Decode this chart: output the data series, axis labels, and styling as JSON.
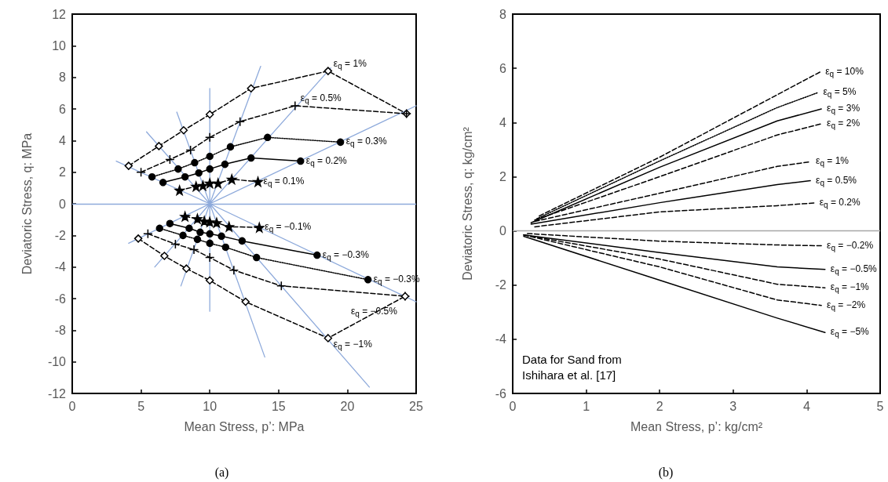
{
  "chart_data": [
    {
      "type": "line",
      "title": "(a)",
      "xlabel": "Mean Stress, p’: MPa",
      "ylabel": "Deviatoric Stress, q: MPa",
      "xlim": [
        0,
        25
      ],
      "xticks": [
        0,
        5,
        10,
        15,
        20,
        25
      ],
      "ylim": [
        -12,
        12
      ],
      "yticks": [
        -12,
        -10,
        -8,
        -6,
        -4,
        -2,
        0,
        2,
        4,
        6,
        8,
        10,
        12
      ],
      "grid": false,
      "ref_lines": [
        {
          "axis": "y",
          "value": 0,
          "color": "#8eaadb"
        }
      ],
      "series": [
        {
          "color": "#8eaadb",
          "marker": "none",
          "line_style": "solid",
          "x": [
            3.2,
            10,
            5.4,
            10,
            7.6,
            10,
            10,
            10,
            13.7,
            10,
            18.8,
            10,
            25,
            10,
            4.1,
            10,
            6.0,
            10,
            7.9,
            10,
            10,
            10,
            14,
            10,
            21.6,
            10,
            25
          ],
          "values": [
            2.7,
            0,
            4.55,
            0,
            5.8,
            0,
            7.3,
            0,
            8.7,
            0,
            8.6,
            0,
            6.2,
            0,
            -2.5,
            0,
            -4.0,
            0,
            -5.2,
            0,
            -6.8,
            0,
            -9.7,
            0,
            -11.6,
            0,
            -6.2
          ]
        },
        {
          "color": "#000000",
          "marker": "diamond",
          "line_style": "dashed",
          "x": [
            4.1,
            6.3,
            8.1,
            10.0,
            13.0,
            18.6,
            24.3
          ],
          "values": [
            2.4,
            3.65,
            4.65,
            5.65,
            7.3,
            8.4,
            5.7
          ]
        },
        {
          "color": "#000000",
          "marker": "cross",
          "line_style": "dashed",
          "x": [
            5.0,
            7.1,
            8.6,
            10.0,
            12.2,
            16.2,
            24.3
          ],
          "values": [
            2.0,
            2.8,
            3.4,
            4.2,
            5.2,
            6.2,
            5.7
          ]
        },
        {
          "color": "#000000",
          "marker": "circle",
          "line_style": "dotted",
          "x": [
            5.8,
            7.7,
            8.9,
            10.0,
            11.5,
            14.2,
            19.5
          ],
          "values": [
            1.7,
            2.2,
            2.6,
            3.0,
            3.6,
            4.2,
            3.9
          ]
        },
        {
          "color": "#000000",
          "marker": "circle",
          "line_style": "solid",
          "x": [
            6.6,
            8.2,
            9.2,
            10.0,
            11.1,
            13.0,
            16.6
          ],
          "values": [
            1.35,
            1.7,
            1.95,
            2.2,
            2.5,
            2.9,
            2.7
          ]
        },
        {
          "color": "#000000",
          "marker": "star",
          "line_style": "dashed",
          "x": [
            7.8,
            9.0,
            9.5,
            10.0,
            10.6,
            11.6,
            13.5
          ],
          "values": [
            0.85,
            1.1,
            1.15,
            1.3,
            1.3,
            1.55,
            1.4
          ]
        },
        {
          "color": "#000000",
          "marker": "star",
          "line_style": "dashed",
          "x": [
            8.2,
            9.1,
            9.6,
            10.0,
            10.5,
            11.4,
            13.6
          ],
          "values": [
            -0.8,
            -0.95,
            -1.1,
            -1.15,
            -1.2,
            -1.45,
            -1.5
          ]
        },
        {
          "color": "#000000",
          "marker": "circle",
          "line_style": "solid",
          "x": [
            7.1,
            8.5,
            9.3,
            10.0,
            10.85,
            12.35,
            17.8
          ],
          "values": [
            -1.25,
            -1.55,
            -1.8,
            -1.9,
            -2.05,
            -2.35,
            -3.25
          ]
        },
        {
          "color": "#000000",
          "marker": "circle",
          "line_style": "dotted",
          "x": [
            6.35,
            8.05,
            9.1,
            10.0,
            11.15,
            13.4,
            21.5
          ],
          "values": [
            -1.55,
            -2.0,
            -2.25,
            -2.5,
            -2.75,
            -3.4,
            -4.8
          ]
        },
        {
          "color": "#000000",
          "marker": "cross",
          "line_style": "dashed",
          "x": [
            5.5,
            7.5,
            8.85,
            10.0,
            11.75,
            15.2,
            24.2
          ],
          "values": [
            -1.9,
            -2.55,
            -2.9,
            -3.4,
            -4.2,
            -5.2,
            -5.85
          ]
        },
        {
          "color": "#000000",
          "marker": "diamond",
          "line_style": "dashed",
          "x": [
            4.8,
            6.7,
            8.3,
            10.0,
            12.6,
            18.6,
            24.2
          ],
          "values": [
            -2.2,
            -3.3,
            -4.1,
            -4.85,
            -6.2,
            -8.5,
            -5.85
          ]
        }
      ],
      "annotations": [
        {
          "text": "ε$_{q}$ = 1%",
          "x": 18.6,
          "y": 8.4
        },
        {
          "text": "ε$_{q}$ = 0.5%",
          "x": 16.2,
          "y": 6.2
        },
        {
          "text": "ε$_{q}$ = 0.3%",
          "x": 19.5,
          "y": 3.9
        },
        {
          "text": "ε$_{q}$ = 0.2%",
          "x": 16.6,
          "y": 2.7
        },
        {
          "text": "ε$_{q}$ = 0.1%",
          "x": 13.5,
          "y": 1.4
        },
        {
          "text": "ε$_{q}$ = −0.1%",
          "x": 13.6,
          "y": -1.5
        },
        {
          "text": "ε$_{q}$ = −0.3%",
          "x": 17.8,
          "y": -3.25
        },
        {
          "text": "ε$_{q}$ = −0.3%",
          "x": 21.5,
          "y": -4.8
        },
        {
          "text": "ε$_{q}$ = −0.5%",
          "x": 24.2,
          "y": -5.85
        },
        {
          "text": "ε$_{q}$ = −1%",
          "x": 18.6,
          "y": -8.5
        }
      ]
    },
    {
      "type": "line",
      "title": "(b)",
      "xlabel": "Mean Stress, p’: kg/cm²",
      "ylabel": "Deviatoric Stress, q: kg/cm²",
      "xlim": [
        0,
        5
      ],
      "xticks": [
        0,
        1,
        2,
        3,
        4,
        5
      ],
      "ylim": [
        -6,
        8
      ],
      "yticks": [
        -6,
        -4,
        -2,
        0,
        2,
        4,
        6,
        8
      ],
      "grid": false,
      "ref_lines": [
        {
          "axis": "y",
          "value": 0,
          "color": "#a6a6a6"
        }
      ],
      "series": [
        {
          "color": "#000000",
          "marker": "none",
          "line_style": "dashed",
          "x": [
            0.36,
            2.0,
            4.18
          ],
          "values": [
            0.55,
            2.72,
            5.86
          ]
        },
        {
          "color": "#000000",
          "marker": "none",
          "line_style": "dotted",
          "x": [
            0.33,
            2.0,
            3.6,
            4.15
          ],
          "values": [
            0.45,
            2.58,
            4.55,
            5.1
          ]
        },
        {
          "color": "#000000",
          "marker": "none",
          "line_style": "solid",
          "x": [
            0.25,
            2.0,
            3.6,
            4.2
          ],
          "values": [
            0.3,
            2.35,
            4.06,
            4.5
          ]
        },
        {
          "color": "#000000",
          "marker": "none",
          "line_style": "dashed",
          "x": [
            0.3,
            2.0,
            3.6,
            4.2
          ],
          "values": [
            0.4,
            2.0,
            3.54,
            3.95
          ]
        },
        {
          "color": "#000000",
          "marker": "none",
          "line_style": "dashed",
          "x": [
            0.3,
            2.0,
            3.6,
            4.05
          ],
          "values": [
            0.35,
            1.39,
            2.38,
            2.55
          ]
        },
        {
          "color": "#000000",
          "marker": "none",
          "line_style": "solid",
          "x": [
            0.25,
            2.0,
            3.6,
            4.05
          ],
          "values": [
            0.25,
            1.04,
            1.71,
            1.85
          ]
        },
        {
          "color": "#000000",
          "marker": "none",
          "line_style": "dashed",
          "x": [
            0.3,
            2.0,
            3.6,
            4.1
          ],
          "values": [
            0.15,
            0.7,
            0.93,
            1.03
          ]
        },
        {
          "color": "#000000",
          "marker": "none",
          "line_style": "dashed",
          "x": [
            0.2,
            2.0,
            3.6,
            4.2
          ],
          "values": [
            -0.1,
            -0.38,
            -0.52,
            -0.55
          ]
        },
        {
          "color": "#000000",
          "marker": "none",
          "line_style": "solid",
          "x": [
            0.15,
            2.0,
            3.6,
            4.25
          ],
          "values": [
            -0.15,
            -0.8,
            -1.33,
            -1.42
          ]
        },
        {
          "color": "#000000",
          "marker": "none",
          "line_style": "dashed",
          "x": [
            0.15,
            2.0,
            3.6,
            4.25
          ],
          "values": [
            -0.15,
            -1.04,
            -1.97,
            -2.1
          ]
        },
        {
          "color": "#000000",
          "marker": "none",
          "line_style": "dashed",
          "x": [
            0.15,
            2.0,
            3.6,
            4.2
          ],
          "values": [
            -0.15,
            -1.33,
            -2.55,
            -2.75
          ]
        },
        {
          "color": "#000000",
          "marker": "none",
          "line_style": "solid",
          "x": [
            0.15,
            2.0,
            3.6,
            4.25
          ],
          "values": [
            -0.2,
            -1.82,
            -3.22,
            -3.75
          ]
        }
      ],
      "annotations": [
        {
          "text": "ε$_{q}$ = 10%",
          "x": 4.18,
          "y": 5.86
        },
        {
          "text": "ε$_{q}$ = 5%",
          "x": 4.15,
          "y": 5.1
        },
        {
          "text": "ε$_{q}$ = 3%",
          "x": 4.2,
          "y": 4.5
        },
        {
          "text": "ε$_{q}$ = 2%",
          "x": 4.2,
          "y": 3.95
        },
        {
          "text": "ε$_{q}$ = 1%",
          "x": 4.05,
          "y": 2.55
        },
        {
          "text": "ε$_{q}$ = 0.5%",
          "x": 4.05,
          "y": 1.85
        },
        {
          "text": "ε$_{q}$ = 0.2%",
          "x": 4.1,
          "y": 1.03
        },
        {
          "text": "ε$_{q}$ = −0.2%",
          "x": 4.2,
          "y": -0.55
        },
        {
          "text": "ε$_{q}$ = −0.5%",
          "x": 4.25,
          "y": -1.42
        },
        {
          "text": "ε$_{q}$ = −1%",
          "x": 4.25,
          "y": -2.1
        },
        {
          "text": "ε$_{q}$ = −2%",
          "x": 4.2,
          "y": -2.75
        },
        {
          "text": "ε$_{q}$ = −5%",
          "x": 4.25,
          "y": -3.75
        },
        "Data for Sand from\nIshihara et al. [17]"
      ]
    }
  ]
}
